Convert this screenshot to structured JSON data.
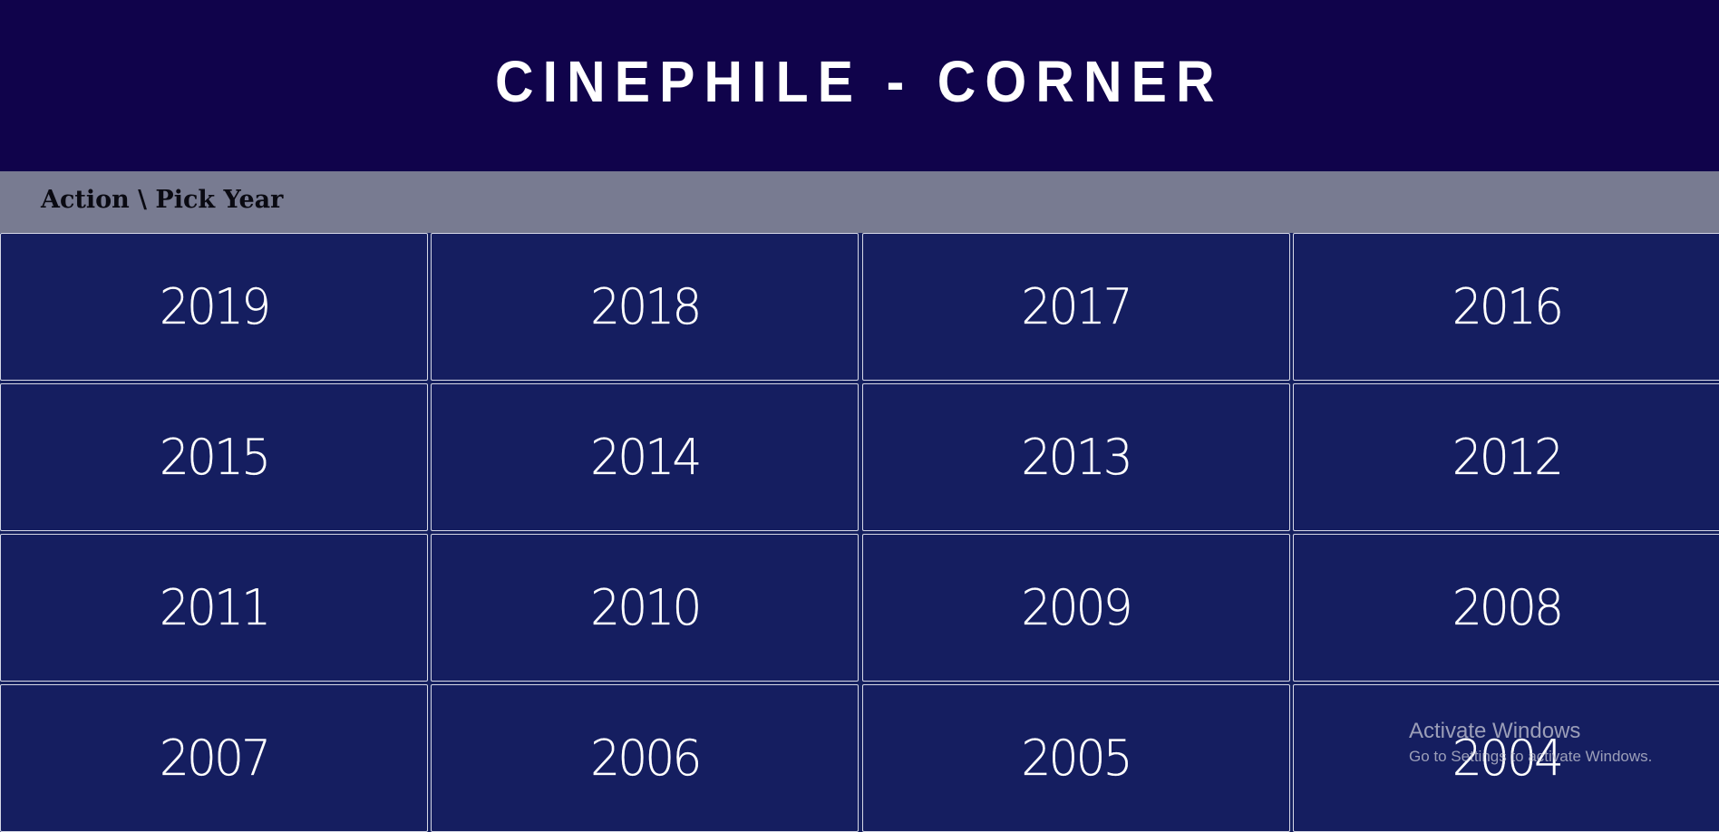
{
  "header": {
    "title": "CINEPHILE - CORNER"
  },
  "breadcrumb": {
    "text": "Action \\ Pick Year"
  },
  "years": [
    "2019",
    "2018",
    "2017",
    "2016",
    "2015",
    "2014",
    "2013",
    "2012",
    "2011",
    "2010",
    "2009",
    "2008",
    "2007",
    "2006",
    "2005",
    "2004"
  ],
  "watermark": {
    "title": "Activate Windows",
    "subtitle": "Go to Settings to activate Windows."
  },
  "colors": {
    "header_bg": "#10034b",
    "breadcrumb_bg": "#787b91",
    "tile_bg": "#151e60",
    "tile_text": "#ffffff"
  }
}
